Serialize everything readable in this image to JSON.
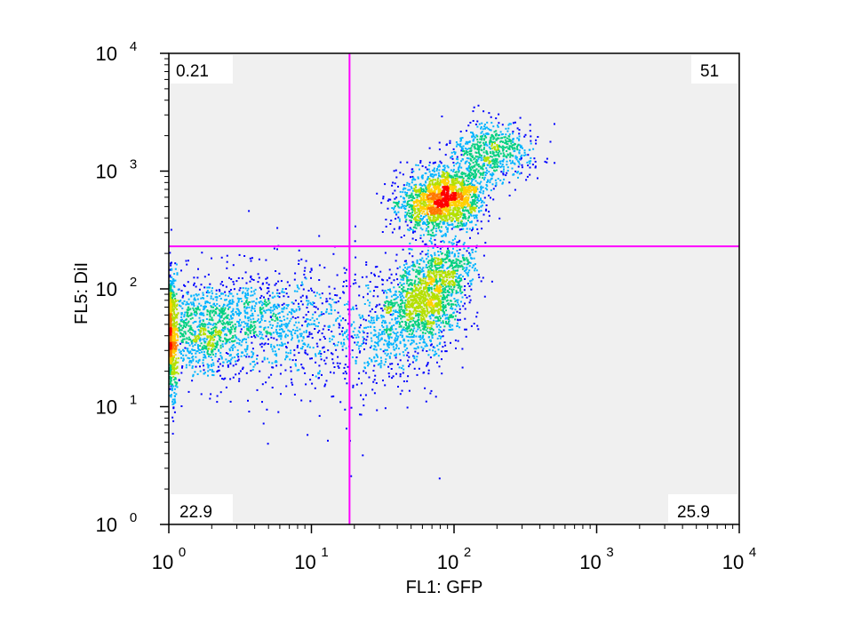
{
  "chart_data": {
    "type": "scatter",
    "title": "",
    "xlabel": "FL1: GFP",
    "ylabel": "FL5: DiI",
    "x_scale": "log",
    "y_scale": "log",
    "xlim": [
      1,
      10000
    ],
    "ylim": [
      1,
      10000
    ],
    "x_ticks": [
      {
        "base": "10",
        "exp": "0",
        "value": 1
      },
      {
        "base": "10",
        "exp": "1",
        "value": 10
      },
      {
        "base": "10",
        "exp": "2",
        "value": 100
      },
      {
        "base": "10",
        "exp": "3",
        "value": 1000
      },
      {
        "base": "10",
        "exp": "4",
        "value": 10000
      }
    ],
    "y_ticks": [
      {
        "base": "10",
        "exp": "0",
        "value": 1
      },
      {
        "base": "10",
        "exp": "1",
        "value": 10
      },
      {
        "base": "10",
        "exp": "2",
        "value": 100
      },
      {
        "base": "10",
        "exp": "3",
        "value": 1000
      },
      {
        "base": "10",
        "exp": "4",
        "value": 10000
      }
    ],
    "quadrant_gates": {
      "x": 18.5,
      "y": 230,
      "color": "#ff00ff"
    },
    "quadrants": [
      {
        "position": "top-left",
        "label": "0.21"
      },
      {
        "position": "top-right",
        "label": "51"
      },
      {
        "position": "bottom-left",
        "label": "22.9"
      },
      {
        "position": "bottom-right",
        "label": "25.9"
      }
    ],
    "background": "#f0f0f0",
    "density_colors": [
      "#0000ff",
      "#00b4ff",
      "#00d080",
      "#b4e000",
      "#ffd000",
      "#ff7800",
      "#ff0000"
    ],
    "populations": [
      {
        "x": 1.35,
        "y": 42,
        "sx": 0.22,
        "sy": 0.2,
        "weight": 0.12
      },
      {
        "x": 1.05,
        "y": 38,
        "sx": 0.015,
        "sy": 0.3,
        "weight": 0.05
      },
      {
        "x": 2.5,
        "y": 55,
        "sx": 0.3,
        "sy": 0.2,
        "weight": 0.1
      },
      {
        "x": 7.0,
        "y": 58,
        "sx": 0.25,
        "sy": 0.25,
        "weight": 0.06
      },
      {
        "x": 15.0,
        "y": 30,
        "sx": 0.3,
        "sy": 0.35,
        "weight": 0.03
      },
      {
        "x": 35.0,
        "y": 40,
        "sx": 0.18,
        "sy": 0.22,
        "weight": 0.06
      },
      {
        "x": 60.0,
        "y": 80,
        "sx": 0.14,
        "sy": 0.17,
        "weight": 0.16
      },
      {
        "x": 90.0,
        "y": 150,
        "sx": 0.1,
        "sy": 0.12,
        "weight": 0.06
      },
      {
        "x": 90.0,
        "y": 600,
        "sx": 0.13,
        "sy": 0.13,
        "weight": 0.22
      },
      {
        "x": 55.0,
        "y": 500,
        "sx": 0.1,
        "sy": 0.12,
        "weight": 0.05
      },
      {
        "x": 180.0,
        "y": 1500,
        "sx": 0.14,
        "sy": 0.12,
        "weight": 0.09
      }
    ]
  }
}
